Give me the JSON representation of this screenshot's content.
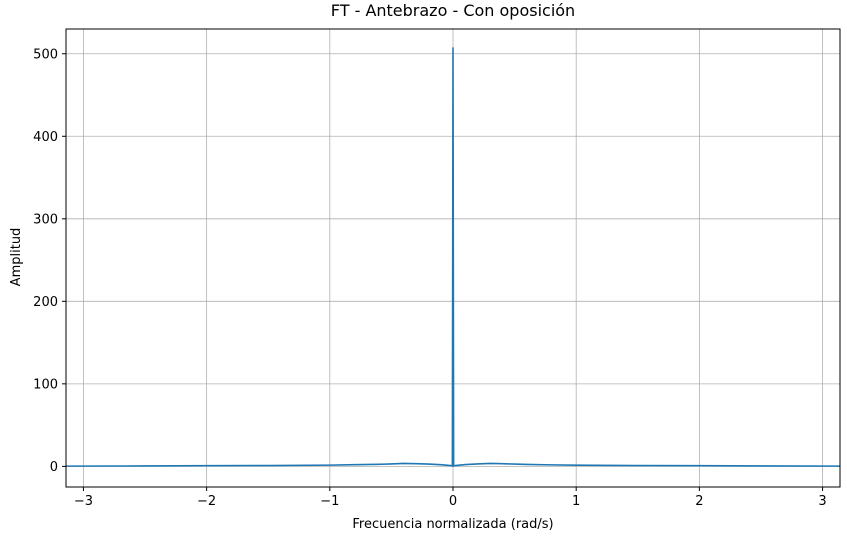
{
  "chart_data": {
    "type": "line",
    "title": "FT - Antebrazo - Con oposición",
    "xlabel": "Frecuencia normalizada (rad/s)",
    "ylabel": "Amplitud",
    "xlim": [
      -3.1416,
      3.1416
    ],
    "ylim": [
      -25,
      530
    ],
    "grid": true,
    "x_ticks": [
      -3,
      -2,
      -1,
      0,
      1,
      2,
      3
    ],
    "x_tick_labels": [
      "−3",
      "−2",
      "−1",
      "0",
      "1",
      "2",
      "3"
    ],
    "y_ticks": [
      0,
      100,
      200,
      300,
      400,
      500
    ],
    "y_tick_labels": [
      "0",
      "100",
      "200",
      "300",
      "400",
      "500"
    ],
    "series": [
      {
        "color": "#1f77b4",
        "x": [
          -3.1416,
          -2.5,
          -2.0,
          -1.5,
          -1.0,
          -0.8,
          -0.6,
          -0.5,
          -0.4,
          -0.3,
          -0.2,
          -0.1,
          -0.02,
          -0.005,
          0.0,
          0.005,
          0.02,
          0.1,
          0.2,
          0.3,
          0.4,
          0.5,
          0.6,
          0.8,
          1.0,
          1.5,
          2.0,
          2.5,
          3.1416
        ],
        "y": [
          0.3,
          0.5,
          0.8,
          1.0,
          1.5,
          2.0,
          2.5,
          3.0,
          3.5,
          3.2,
          2.8,
          2.0,
          1.0,
          0.5,
          507,
          0.5,
          1.0,
          2.2,
          3.0,
          3.5,
          3.2,
          2.8,
          2.3,
          1.8,
          1.4,
          1.0,
          0.8,
          0.5,
          0.3
        ]
      }
    ]
  }
}
